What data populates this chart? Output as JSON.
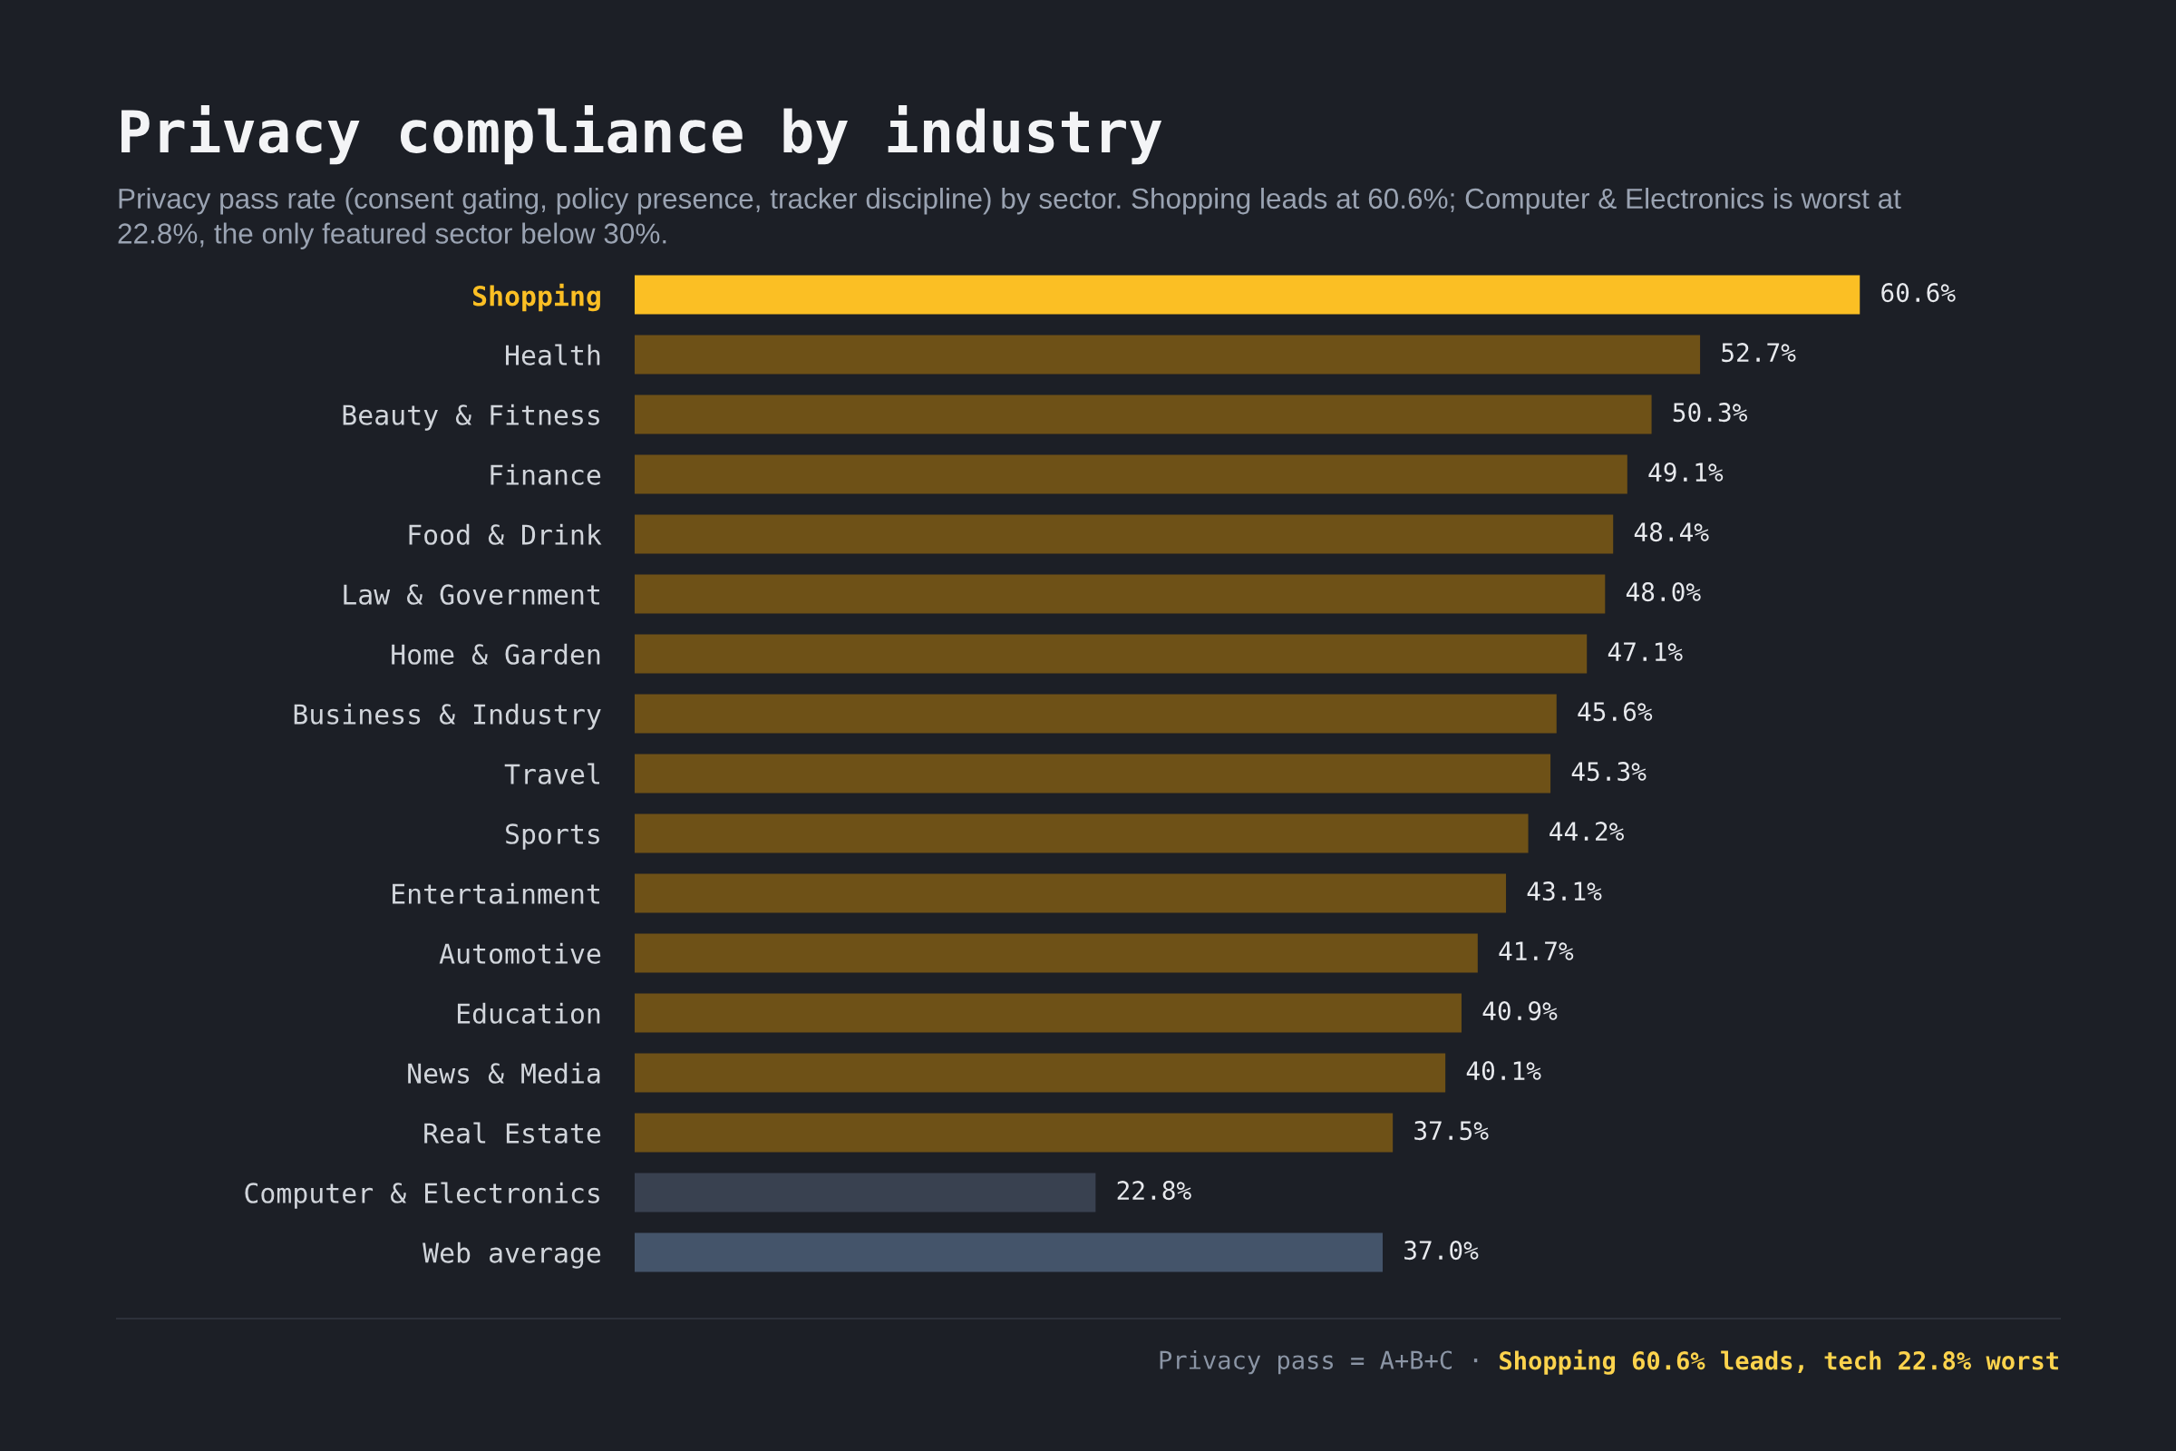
{
  "chart_data": {
    "type": "bar",
    "orientation": "horizontal",
    "title": "Privacy compliance by industry",
    "subtitle": "Privacy pass rate (consent gating, policy presence, tracker discipline) by sector. Shopping leads at 60.6%; Computer & Electronics is worst at 22.8%, the only featured sector below 30%.",
    "categories": [
      "Shopping",
      "Health",
      "Beauty & Fitness",
      "Finance",
      "Food & Drink",
      "Law & Government",
      "Home & Garden",
      "Business & Industry",
      "Travel",
      "Sports",
      "Entertainment",
      "Automotive",
      "Education",
      "News & Media",
      "Real Estate",
      "Computer & Electronics",
      "Web average"
    ],
    "values": [
      60.6,
      52.7,
      50.3,
      49.1,
      48.4,
      48.0,
      47.1,
      45.6,
      45.3,
      44.2,
      43.1,
      41.7,
      40.9,
      40.1,
      37.5,
      22.8,
      37.0
    ],
    "colors": [
      "#fbbf24",
      "#6e5117",
      "#6e5117",
      "#6e5117",
      "#6e5117",
      "#6e5117",
      "#6e5117",
      "#6e5117",
      "#6e5117",
      "#6e5117",
      "#6e5117",
      "#6e5117",
      "#6e5117",
      "#6e5117",
      "#6e5117",
      "#394150",
      "#44546a"
    ],
    "value_labels": [
      "60.6%",
      "52.7%",
      "50.3%",
      "49.1%",
      "48.4%",
      "48.0%",
      "47.1%",
      "45.6%",
      "45.3%",
      "44.2%",
      "43.1%",
      "41.7%",
      "40.9%",
      "40.1%",
      "37.5%",
      "22.8%",
      "37.0%"
    ],
    "xlim": [
      0,
      70.5
    ],
    "tick_labels": "y",
    "annotations": [
      "Privacy pass = A+B+C ·",
      "Shopping 60.6% leads, tech 22.8% worst"
    ]
  }
}
